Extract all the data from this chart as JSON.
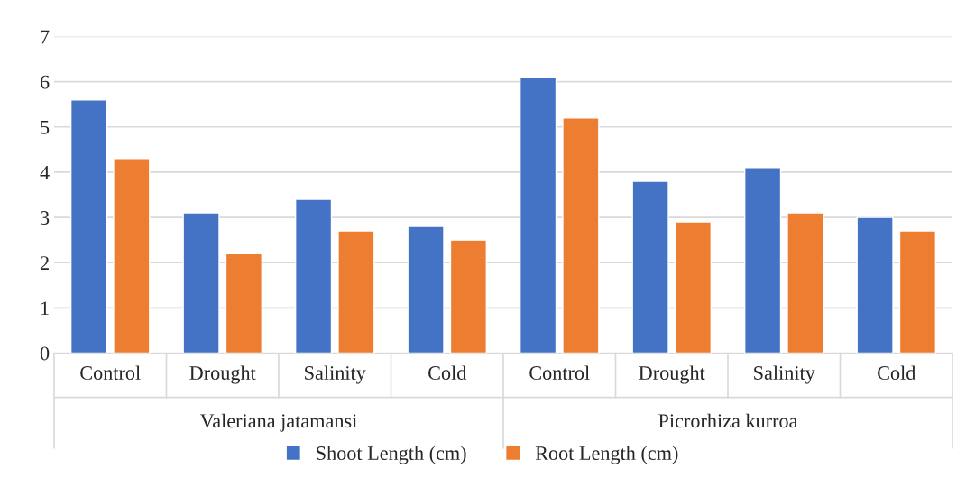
{
  "chart_data": {
    "type": "bar",
    "categories": [
      "Control",
      "Drought",
      "Salinity",
      "Cold",
      "Control",
      "Drought",
      "Salinity",
      "Cold"
    ],
    "series": [
      {
        "name": "Shoot Length (cm)",
        "color": "#4472c4",
        "values": [
          5.6,
          3.1,
          3.4,
          2.8,
          6.1,
          3.8,
          4.1,
          3.0
        ]
      },
      {
        "name": "Root Length (cm)",
        "color": "#ed7d31",
        "values": [
          4.3,
          2.2,
          2.7,
          2.5,
          5.2,
          2.9,
          3.1,
          2.7
        ]
      }
    ],
    "annotations": [
      "Valeriana jatamansi",
      "Picrorhiza kurroa"
    ],
    "ylim": [
      0,
      7
    ],
    "yticks": [
      0,
      1,
      2,
      3,
      4,
      5,
      6,
      7
    ],
    "grid": "y",
    "legend": "bottom"
  }
}
